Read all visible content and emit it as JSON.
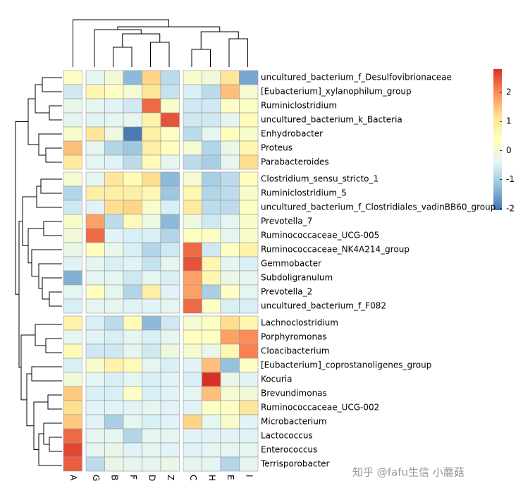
{
  "chart_data": {
    "type": "heatmap",
    "columns": [
      "A",
      "G",
      "B",
      "F",
      "D",
      "Z",
      "C",
      "H",
      "E",
      "I"
    ],
    "rows": [
      "uncultured_bacterium_f_Desulfovibrionaceae",
      "[Eubacterium]_xylanophilum_group",
      "Ruminiclostridium",
      "uncultured_bacterium_k_Bacteria",
      "Enhydrobacter",
      "Proteus",
      "Parabacteroides",
      "Clostridium_sensu_stricto_1",
      "Ruminiclostridium_5",
      "uncultured_bacterium_f_Clostridiales_vadinBB60_group",
      "Prevotella_7",
      "Ruminococcaceae_UCG-005",
      "Ruminococcaceae_NK4A214_group",
      "Gemmobacter",
      "Subdoligranulum",
      "Prevotella_2",
      "uncultured_bacterium_f_F082",
      "Lachnoclostridium",
      "Porphyromonas",
      "Cloacibacterium",
      "[Eubacterium]_coprostanoligenes_group",
      "Kocuria",
      "Brevundimonas",
      "Ruminococcaceae_UCG-002",
      "Microbacterium",
      "Lactococcus",
      "Enterococcus",
      "Terrisporobacter"
    ],
    "values": [
      [
        0.3,
        -0.3,
        0,
        -1.3,
        1.3,
        -0.8,
        0.2,
        0,
        1.0,
        -1.5
      ],
      [
        -0.6,
        0.6,
        0.3,
        0.1,
        1.0,
        -0.7,
        -0.5,
        -0.8,
        1.5,
        0.1
      ],
      [
        -0.2,
        -0.3,
        -0.4,
        -0.6,
        2.3,
        0.2,
        -0.6,
        -0.6,
        0.3,
        0.3
      ],
      [
        -0.3,
        -0.4,
        -0.3,
        -0.3,
        0.7,
        2.5,
        -0.6,
        -0.6,
        -0.3,
        0.5
      ],
      [
        0.2,
        1.0,
        -0.1,
        -2.0,
        0.8,
        0.3,
        -0.8,
        -0.3,
        0.4,
        0.2
      ],
      [
        1.5,
        -0.3,
        -0.9,
        -1.1,
        0.8,
        0.4,
        0.1,
        -0.9,
        -0.2,
        0.6
      ],
      [
        0.9,
        -0.3,
        -0.4,
        -0.8,
        0.5,
        -0.3,
        -0.8,
        -1.0,
        -0.3,
        1.2
      ],
      [
        0.1,
        -0.3,
        1.0,
        0.5,
        1.2,
        -1.3,
        0.1,
        -1.0,
        -0.8,
        0.4
      ],
      [
        -0.9,
        0.8,
        0.8,
        0.8,
        0.6,
        -1.1,
        0.6,
        -0.9,
        -0.8,
        0.2
      ],
      [
        -0.6,
        -0.4,
        1.2,
        1.3,
        0.2,
        -0.5,
        0.9,
        -0.8,
        -0.8,
        0.3
      ],
      [
        0.2,
        1.8,
        -0.8,
        0.5,
        -0.1,
        -1.3,
        -0.1,
        -0.6,
        -0.3,
        0.2
      ],
      [
        0,
        2.3,
        -0.4,
        -0.5,
        -0.5,
        -0.9,
        0.3,
        0.3,
        -0.3,
        0.2
      ],
      [
        -0.2,
        0.4,
        -0.2,
        -0.5,
        -0.9,
        -0.6,
        2.3,
        -0.6,
        0.3,
        0.7
      ],
      [
        -0.4,
        -0.3,
        -0.5,
        -0.4,
        -0.7,
        -0.3,
        2.5,
        0.6,
        -0.3,
        -0.5
      ],
      [
        -1.4,
        -0.3,
        -0.3,
        -0.6,
        -0.3,
        -0.5,
        1.8,
        0.6,
        -0.2,
        -0.3
      ],
      [
        -0.3,
        0.4,
        -0.3,
        -0.9,
        0.8,
        -0.4,
        1.8,
        -1.0,
        0.3,
        -0.3
      ],
      [
        -0.5,
        -0.3,
        -0.3,
        -0.4,
        -0.4,
        -0.3,
        2.3,
        0.3,
        -0.5,
        -0.5
      ],
      [
        0.7,
        -0.5,
        -0.8,
        0.5,
        -1.3,
        -0.6,
        0.1,
        0.3,
        1.2,
        0.6
      ],
      [
        -0.3,
        -0.4,
        -0.5,
        -0.3,
        -0.5,
        -0.3,
        0.4,
        0.3,
        1.8,
        2.0
      ],
      [
        0.5,
        -0.6,
        -0.6,
        -0.3,
        -0.6,
        -0.1,
        0.1,
        -0.2,
        0.6,
        2.1
      ],
      [
        -0.5,
        0.2,
        0.7,
        0.5,
        -0.3,
        -0.5,
        -0.4,
        1.5,
        -1.2,
        0.3
      ],
      [
        0,
        -0.3,
        -0.5,
        -0.3,
        -0.5,
        -0.4,
        -0.5,
        2.8,
        -0.2,
        -0.4
      ],
      [
        1.4,
        -0.5,
        -0.5,
        0.3,
        -0.5,
        -0.4,
        -0.3,
        1.5,
        0.1,
        0
      ],
      [
        1.2,
        -0.4,
        -0.4,
        -0.4,
        -0.3,
        -0.4,
        -0.4,
        0.3,
        0.3,
        1.0
      ],
      [
        1.4,
        -0.4,
        -1.0,
        -0.3,
        -0.5,
        -0.4,
        1.3,
        -0.3,
        0.2,
        -0.4
      ],
      [
        2.3,
        -0.3,
        -0.3,
        -0.9,
        -0.3,
        -0.3,
        -0.4,
        -0.4,
        -0.4,
        -0.4
      ],
      [
        2.6,
        -0.3,
        -0.2,
        -0.4,
        -0.3,
        -0.4,
        -0.4,
        -0.3,
        -0.3,
        -0.3
      ],
      [
        2.4,
        -0.8,
        -0.2,
        -0.3,
        -0.3,
        -0.2,
        -0.3,
        -0.3,
        -0.9,
        -0.3
      ]
    ],
    "row_gaps": [
      7,
      17
    ],
    "col_gaps": [
      1,
      6
    ],
    "colors": [
      "#4575B4",
      "#91BFDB",
      "#E0F3F8",
      "#FFFFBF",
      "#FEE090",
      "#FC8D59",
      "#D73027"
    ],
    "zlim": [
      -2.05,
      2.8
    ],
    "zticks": [
      -2,
      -1,
      0,
      1,
      2
    ]
  },
  "watermark": "知乎 @fafu生信 小蘑菇"
}
